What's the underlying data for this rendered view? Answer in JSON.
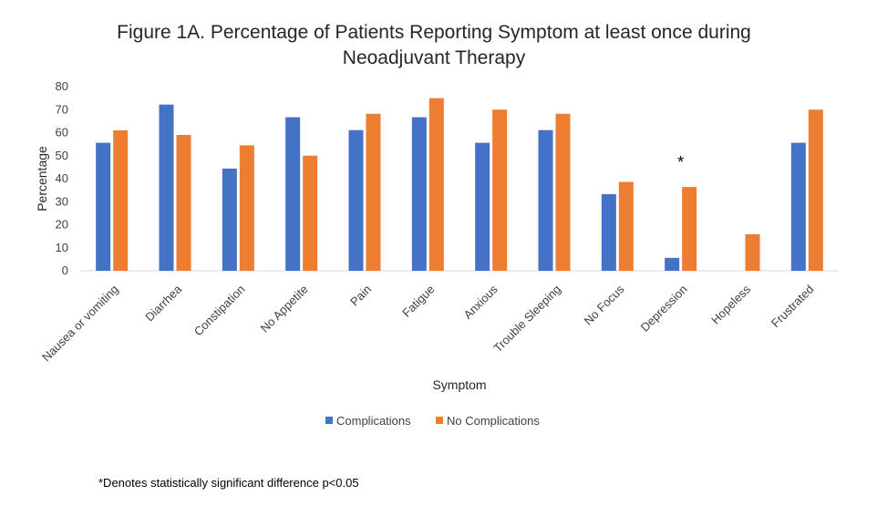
{
  "chart_data": {
    "type": "bar",
    "title_lines": [
      "Figure 1A. Percentage of Patients Reporting Symptom at least once during",
      "Neoadjuvant Therapy"
    ],
    "xlabel": "Symptom",
    "ylabel": "Percentage",
    "ylim": [
      0,
      80
    ],
    "yticks": [
      0,
      10,
      20,
      30,
      40,
      50,
      60,
      70,
      80
    ],
    "grid": false,
    "legend_position": "bottom",
    "categories": [
      "Nausea or vomiting",
      "Diarrhea",
      "Constipation",
      "No Appetite",
      "Pain",
      "Fatigue",
      "Anxious",
      "Trouble Sleeping",
      "No Focus",
      "Depression",
      "Hopeless",
      "Frustrated"
    ],
    "series": [
      {
        "name": "Complications",
        "color": "#4472C4",
        "values": [
          55.6,
          72.2,
          44.4,
          66.7,
          61.1,
          66.7,
          55.6,
          61.1,
          33.3,
          5.6,
          0,
          55.6
        ]
      },
      {
        "name": "No Complications",
        "color": "#ED7D31",
        "values": [
          61.0,
          59.0,
          54.5,
          50.0,
          68.2,
          75.0,
          70.0,
          68.2,
          38.6,
          36.4,
          15.9,
          70.0
        ]
      }
    ],
    "annotations": [
      {
        "text": "*",
        "category": "Depression"
      }
    ],
    "footnote": "*Denotes statistically significant difference p<0.05"
  }
}
